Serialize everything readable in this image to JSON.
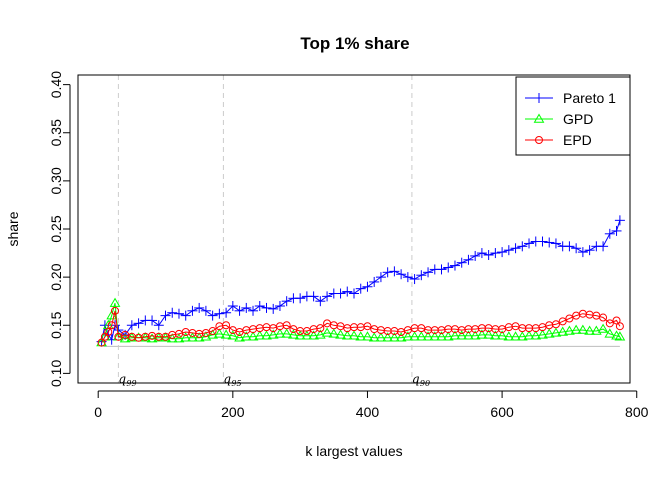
{
  "chart_data": {
    "type": "line",
    "title": "Top 1% share",
    "xlabel": "k largest values",
    "ylabel": "share",
    "xlim": [
      -30,
      790
    ],
    "ylim": [
      0.09,
      0.41
    ],
    "xticks": [
      0,
      200,
      400,
      600,
      800
    ],
    "yticks": [
      0.1,
      0.15,
      0.2,
      0.25,
      0.3,
      0.35,
      0.4
    ],
    "ytick_labels": [
      "0.10",
      "0.15",
      "0.20",
      "0.25",
      "0.30",
      "0.35",
      "0.40"
    ],
    "grid": false,
    "legend_position": "top-right",
    "reference_line": {
      "y": 0.128,
      "color": "#bdbdbd"
    },
    "quantile_lines": [
      {
        "x": 30,
        "label": "q",
        "sub": "99"
      },
      {
        "x": 186,
        "label": "q",
        "sub": "95"
      },
      {
        "x": 466,
        "label": "q",
        "sub": "90"
      }
    ],
    "series": [
      {
        "name": "Pareto 1",
        "color": "#0000ff",
        "marker": "plus",
        "x": [
          5,
          10,
          15,
          20,
          25,
          30,
          40,
          50,
          60,
          70,
          80,
          90,
          100,
          110,
          120,
          130,
          140,
          150,
          160,
          170,
          180,
          190,
          200,
          210,
          220,
          230,
          240,
          250,
          260,
          270,
          280,
          290,
          300,
          310,
          320,
          330,
          340,
          350,
          360,
          370,
          380,
          390,
          400,
          410,
          420,
          430,
          440,
          450,
          460,
          470,
          480,
          490,
          500,
          510,
          520,
          530,
          540,
          550,
          560,
          570,
          580,
          590,
          600,
          610,
          620,
          630,
          640,
          650,
          660,
          670,
          680,
          690,
          700,
          710,
          720,
          730,
          740,
          750,
          760,
          770,
          775
        ],
        "y": [
          0.133,
          0.15,
          0.14,
          0.135,
          0.15,
          0.145,
          0.14,
          0.15,
          0.152,
          0.155,
          0.155,
          0.15,
          0.16,
          0.163,
          0.162,
          0.16,
          0.165,
          0.168,
          0.165,
          0.16,
          0.162,
          0.163,
          0.17,
          0.165,
          0.168,
          0.165,
          0.17,
          0.168,
          0.167,
          0.17,
          0.175,
          0.178,
          0.178,
          0.18,
          0.18,
          0.175,
          0.18,
          0.183,
          0.183,
          0.185,
          0.183,
          0.188,
          0.19,
          0.195,
          0.2,
          0.205,
          0.206,
          0.203,
          0.2,
          0.198,
          0.202,
          0.205,
          0.208,
          0.208,
          0.21,
          0.212,
          0.215,
          0.218,
          0.222,
          0.225,
          0.223,
          0.225,
          0.226,
          0.228,
          0.23,
          0.232,
          0.235,
          0.237,
          0.237,
          0.236,
          0.235,
          0.232,
          0.232,
          0.23,
          0.226,
          0.228,
          0.232,
          0.232,
          0.245,
          0.248,
          0.259
        ]
      },
      {
        "name": "GPD",
        "color": "#00ff00",
        "marker": "triangle",
        "x": [
          5,
          10,
          15,
          20,
          25,
          30,
          40,
          50,
          60,
          70,
          80,
          90,
          100,
          110,
          120,
          130,
          140,
          150,
          160,
          170,
          180,
          190,
          200,
          210,
          220,
          230,
          240,
          250,
          260,
          270,
          280,
          290,
          300,
          310,
          320,
          330,
          340,
          350,
          360,
          370,
          380,
          390,
          400,
          410,
          420,
          430,
          440,
          450,
          460,
          470,
          480,
          490,
          500,
          510,
          520,
          530,
          540,
          550,
          560,
          570,
          580,
          590,
          600,
          610,
          620,
          630,
          640,
          650,
          660,
          670,
          680,
          690,
          700,
          710,
          720,
          730,
          740,
          750,
          760,
          770,
          775
        ],
        "y": [
          0.132,
          0.138,
          0.15,
          0.16,
          0.173,
          0.138,
          0.136,
          0.137,
          0.137,
          0.137,
          0.136,
          0.137,
          0.137,
          0.136,
          0.136,
          0.137,
          0.137,
          0.137,
          0.138,
          0.14,
          0.141,
          0.14,
          0.139,
          0.137,
          0.138,
          0.138,
          0.139,
          0.139,
          0.14,
          0.141,
          0.141,
          0.14,
          0.139,
          0.139,
          0.139,
          0.14,
          0.142,
          0.141,
          0.14,
          0.139,
          0.139,
          0.138,
          0.138,
          0.137,
          0.137,
          0.137,
          0.137,
          0.137,
          0.138,
          0.138,
          0.138,
          0.138,
          0.138,
          0.138,
          0.138,
          0.139,
          0.139,
          0.139,
          0.139,
          0.14,
          0.14,
          0.139,
          0.139,
          0.138,
          0.138,
          0.138,
          0.139,
          0.139,
          0.14,
          0.141,
          0.142,
          0.143,
          0.144,
          0.145,
          0.145,
          0.144,
          0.144,
          0.146,
          0.141,
          0.139,
          0.138
        ]
      },
      {
        "name": "EPD",
        "color": "#ff0000",
        "marker": "circle",
        "x": [
          5,
          10,
          15,
          20,
          25,
          30,
          40,
          50,
          60,
          70,
          80,
          90,
          100,
          110,
          120,
          130,
          140,
          150,
          160,
          170,
          180,
          190,
          200,
          210,
          220,
          230,
          240,
          250,
          260,
          270,
          280,
          290,
          300,
          310,
          320,
          330,
          340,
          350,
          360,
          370,
          380,
          390,
          400,
          410,
          420,
          430,
          440,
          450,
          460,
          470,
          480,
          490,
          500,
          510,
          520,
          530,
          540,
          550,
          560,
          570,
          580,
          590,
          600,
          610,
          620,
          630,
          640,
          650,
          660,
          670,
          680,
          690,
          700,
          710,
          720,
          730,
          740,
          750,
          760,
          770,
          775
        ],
        "y": [
          0.132,
          0.138,
          0.143,
          0.15,
          0.165,
          0.138,
          0.14,
          0.138,
          0.137,
          0.138,
          0.139,
          0.138,
          0.138,
          0.14,
          0.141,
          0.143,
          0.142,
          0.141,
          0.142,
          0.144,
          0.149,
          0.15,
          0.145,
          0.143,
          0.145,
          0.146,
          0.147,
          0.148,
          0.147,
          0.149,
          0.15,
          0.146,
          0.144,
          0.144,
          0.146,
          0.147,
          0.152,
          0.15,
          0.149,
          0.147,
          0.148,
          0.148,
          0.149,
          0.146,
          0.145,
          0.144,
          0.144,
          0.143,
          0.145,
          0.147,
          0.147,
          0.145,
          0.145,
          0.145,
          0.146,
          0.146,
          0.145,
          0.146,
          0.146,
          0.147,
          0.147,
          0.146,
          0.146,
          0.148,
          0.149,
          0.147,
          0.147,
          0.147,
          0.148,
          0.15,
          0.151,
          0.154,
          0.157,
          0.16,
          0.162,
          0.161,
          0.16,
          0.158,
          0.152,
          0.155,
          0.149
        ]
      }
    ]
  }
}
